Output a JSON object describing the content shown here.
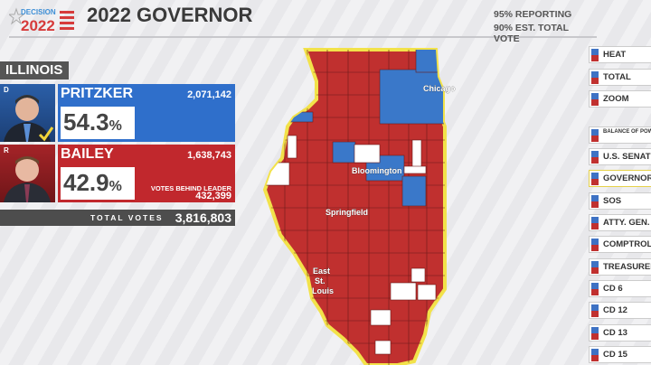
{
  "header": {
    "logo_text": "DECISION 2022",
    "title": "2022 GOVERNOR",
    "reporting": "95% REPORTING",
    "est_total": "90% EST. TOTAL VOTE"
  },
  "state": "ILLINOIS",
  "candidates": [
    {
      "party": "D",
      "name": "PRITZKER",
      "votes": "2,071,142",
      "pct": "54.3",
      "winner": true,
      "color": "#2f6fcb"
    },
    {
      "party": "R",
      "name": "BAILEY",
      "votes": "1,638,743",
      "pct": "42.9",
      "color": "#c1282d",
      "behind_label": "VOTES BEHIND LEADER",
      "behind_value": "432,399"
    }
  ],
  "pct_sign": "%",
  "total": {
    "label": "TOTAL VOTES",
    "value": "3,816,803"
  },
  "map": {
    "cities": [
      "Chicago",
      "Bloomington",
      "Springfield",
      "East",
      "St.",
      "Louis"
    ],
    "colors": {
      "dem": "#3a78c9",
      "rep": "#c0302f",
      "none": "#ffffff",
      "border": "#f2e24a"
    }
  },
  "sidebar": {
    "items": [
      "HEAT",
      "TOTAL",
      "ZOOM",
      "BALANCE OF POWER",
      "U.S. SENATE",
      "GOVERNOR",
      "SOS",
      "ATTY. GEN.",
      "COMPTROLLER",
      "TREASURER",
      "CD 6",
      "CD 12",
      "CD 13",
      "CD 15"
    ],
    "selected": "GOVERNOR"
  }
}
